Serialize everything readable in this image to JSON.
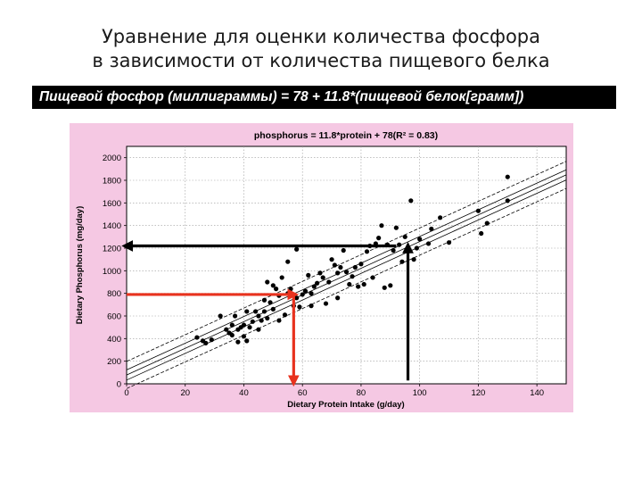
{
  "slide": {
    "title_line1": "Уравнение для оценки количества фосфора",
    "title_line2": "в зависимости от количества пищевого белка",
    "formula": "Пищевой фосфор (миллиграммы) = 78 + 11.8*(пищевой белок[грамм])"
  },
  "colors": {
    "chart_background": "#f5c8e3",
    "plot_background": "#ffffff",
    "points": "#000000",
    "arrow_black": "#000000",
    "arrow_red": "#e8321e"
  },
  "chart_data": {
    "type": "scatter",
    "title": "phosphorus = 11.8*protein + 78(R² = 0.83)",
    "xlabel": "Dietary Protein Intake (g/day)",
    "ylabel": "Dietary Phosphorus (mg/day)",
    "xlim": [
      0,
      150
    ],
    "ylim": [
      0,
      2100
    ],
    "xticks": [
      "0",
      "20",
      "40",
      "60",
      "80",
      "100",
      "120",
      "140"
    ],
    "yticks": [
      "0",
      "200",
      "400",
      "600",
      "800",
      "1000",
      "1200",
      "1400",
      "1600",
      "1800",
      "2000"
    ],
    "regression": {
      "slope": 11.8,
      "intercept": 78
    },
    "points": [
      [
        24,
        410
      ],
      [
        26,
        380
      ],
      [
        27,
        360
      ],
      [
        29,
        390
      ],
      [
        32,
        600
      ],
      [
        34,
        480
      ],
      [
        35,
        450
      ],
      [
        36,
        430
      ],
      [
        36,
        520
      ],
      [
        37,
        600
      ],
      [
        38,
        480
      ],
      [
        38,
        370
      ],
      [
        39,
        500
      ],
      [
        40,
        520
      ],
      [
        40,
        420
      ],
      [
        41,
        640
      ],
      [
        41,
        380
      ],
      [
        42,
        500
      ],
      [
        43,
        550
      ],
      [
        44,
        640
      ],
      [
        45,
        600
      ],
      [
        45,
        480
      ],
      [
        46,
        560
      ],
      [
        47,
        740
      ],
      [
        47,
        640
      ],
      [
        48,
        580
      ],
      [
        48,
        900
      ],
      [
        49,
        720
      ],
      [
        50,
        660
      ],
      [
        50,
        870
      ],
      [
        51,
        840
      ],
      [
        52,
        780
      ],
      [
        52,
        560
      ],
      [
        53,
        940
      ],
      [
        54,
        610
      ],
      [
        55,
        1080
      ],
      [
        55,
        800
      ],
      [
        56,
        840
      ],
      [
        57,
        690
      ],
      [
        58,
        760
      ],
      [
        58,
        1190
      ],
      [
        59,
        680
      ],
      [
        60,
        790
      ],
      [
        61,
        820
      ],
      [
        62,
        960
      ],
      [
        63,
        690
      ],
      [
        63,
        800
      ],
      [
        64,
        860
      ],
      [
        65,
        890
      ],
      [
        66,
        980
      ],
      [
        67,
        940
      ],
      [
        68,
        710
      ],
      [
        69,
        900
      ],
      [
        70,
        1100
      ],
      [
        71,
        1050
      ],
      [
        72,
        760
      ],
      [
        72,
        980
      ],
      [
        73,
        1030
      ],
      [
        74,
        1180
      ],
      [
        75,
        990
      ],
      [
        76,
        880
      ],
      [
        77,
        950
      ],
      [
        78,
        1030
      ],
      [
        79,
        860
      ],
      [
        80,
        1060
      ],
      [
        81,
        880
      ],
      [
        82,
        1170
      ],
      [
        83,
        1220
      ],
      [
        84,
        940
      ],
      [
        85,
        1240
      ],
      [
        86,
        1290
      ],
      [
        87,
        1400
      ],
      [
        88,
        850
      ],
      [
        89,
        1230
      ],
      [
        90,
        870
      ],
      [
        91,
        1180
      ],
      [
        92,
        1380
      ],
      [
        93,
        1230
      ],
      [
        94,
        1080
      ],
      [
        95,
        1300
      ],
      [
        96,
        1190
      ],
      [
        97,
        1620
      ],
      [
        98,
        1100
      ],
      [
        99,
        1200
      ],
      [
        100,
        1280
      ],
      [
        103,
        1240
      ],
      [
        104,
        1370
      ],
      [
        107,
        1470
      ],
      [
        110,
        1250
      ],
      [
        120,
        1530
      ],
      [
        121,
        1330
      ],
      [
        123,
        1420
      ],
      [
        130,
        1830
      ],
      [
        130,
        1620
      ]
    ],
    "annotations": [
      {
        "type": "arrow",
        "color": "black",
        "from": [
          92,
          1220
        ],
        "to": [
          0,
          1220
        ]
      },
      {
        "type": "arrow",
        "color": "black",
        "from": [
          96,
          30
        ],
        "to": [
          96,
          1210
        ]
      },
      {
        "type": "arrow",
        "color": "red",
        "from": [
          0,
          790
        ],
        "to": [
          57,
          790
        ]
      },
      {
        "type": "arrow",
        "color": "red",
        "from": [
          57,
          790
        ],
        "to": [
          57,
          20
        ]
      }
    ]
  }
}
